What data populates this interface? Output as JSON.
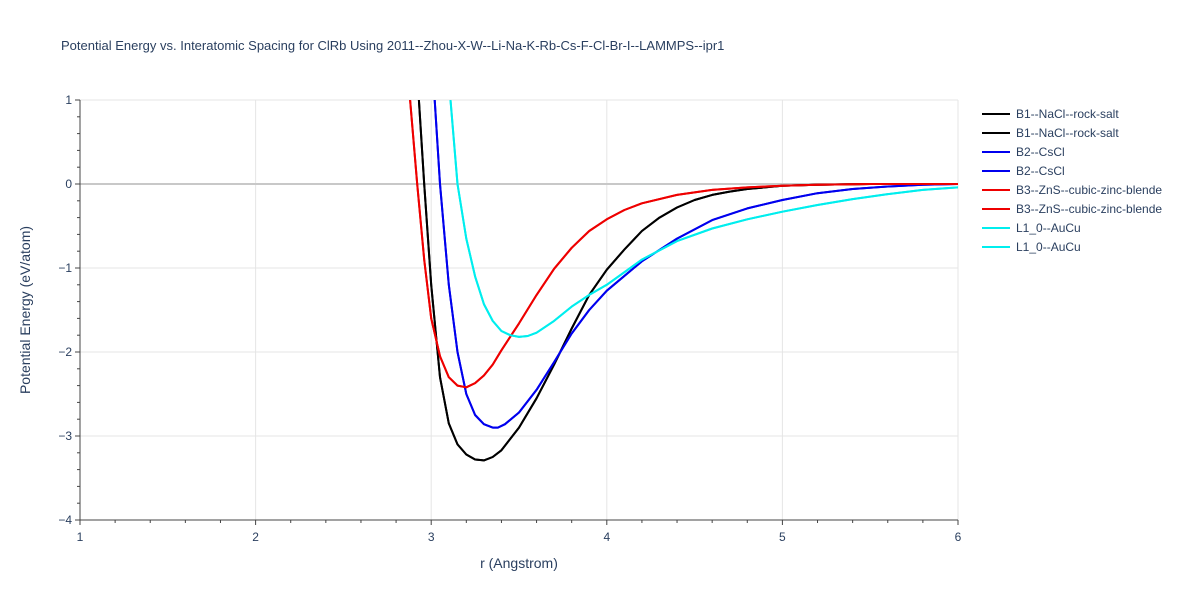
{
  "chart_data": {
    "type": "line",
    "title": "Potential Energy vs. Interatomic Spacing for ClRb Using 2011--Zhou-X-W--Li-Na-K-Rb-Cs-F-Cl-Br-I--LAMMPS--ipr1",
    "xlabel": "r (Angstrom)",
    "ylabel": "Potential Energy (eV/atom)",
    "xlim": [
      1,
      6
    ],
    "ylim": [
      -4,
      1
    ],
    "xticks": [
      1,
      2,
      3,
      4,
      5,
      6
    ],
    "xtick_labels": [
      "1",
      "2",
      "3",
      "4",
      "5",
      "6"
    ],
    "yticks": [
      -4,
      -3,
      -2,
      -1,
      0,
      1
    ],
    "ytick_labels": [
      "−4",
      "−3",
      "−2",
      "−1",
      "0",
      "1"
    ],
    "grid": true,
    "legend_position": "right",
    "series": [
      {
        "name": "B1--NaCl--rock-salt",
        "color": "#000000",
        "x": [
          2.93,
          2.96,
          3.0,
          3.05,
          3.1,
          3.15,
          3.2,
          3.25,
          3.3,
          3.35,
          3.4,
          3.5,
          3.6,
          3.7,
          3.8,
          3.9,
          4.0,
          4.1,
          4.2,
          4.3,
          4.4,
          4.5,
          4.6,
          4.7,
          4.8,
          4.9,
          5.0,
          5.2,
          5.5,
          6.0
        ],
        "y": [
          1.0,
          0.0,
          -1.2,
          -2.3,
          -2.85,
          -3.1,
          -3.22,
          -3.28,
          -3.29,
          -3.25,
          -3.17,
          -2.9,
          -2.55,
          -2.15,
          -1.72,
          -1.32,
          -1.02,
          -0.78,
          -0.56,
          -0.4,
          -0.28,
          -0.19,
          -0.13,
          -0.09,
          -0.06,
          -0.04,
          -0.02,
          -0.01,
          0.0,
          0.0
        ]
      },
      {
        "name": "B1--NaCl--rock-salt",
        "color": "#000000",
        "x": [
          2.93,
          2.96,
          3.0,
          3.05,
          3.1,
          3.15,
          3.2,
          3.25,
          3.3,
          3.35,
          3.4,
          3.5,
          3.6,
          3.7,
          3.8,
          3.9,
          4.0,
          4.1,
          4.2,
          4.3,
          4.4,
          4.5,
          4.6,
          4.7,
          4.8,
          4.9,
          5.0,
          5.2,
          5.5,
          6.0
        ],
        "y": [
          1.0,
          0.0,
          -1.2,
          -2.3,
          -2.85,
          -3.1,
          -3.22,
          -3.28,
          -3.29,
          -3.25,
          -3.17,
          -2.9,
          -2.55,
          -2.15,
          -1.72,
          -1.32,
          -1.02,
          -0.78,
          -0.56,
          -0.4,
          -0.28,
          -0.19,
          -0.13,
          -0.09,
          -0.06,
          -0.04,
          -0.02,
          -0.01,
          0.0,
          0.0
        ]
      },
      {
        "name": "B2--CsCl",
        "color": "#0000ee",
        "x": [
          3.02,
          3.05,
          3.1,
          3.15,
          3.2,
          3.25,
          3.3,
          3.35,
          3.38,
          3.42,
          3.5,
          3.6,
          3.7,
          3.8,
          3.9,
          4.0,
          4.2,
          4.4,
          4.6,
          4.8,
          5.0,
          5.2,
          5.4,
          5.6,
          5.8,
          6.0
        ],
        "y": [
          1.0,
          0.0,
          -1.2,
          -2.0,
          -2.5,
          -2.75,
          -2.86,
          -2.9,
          -2.9,
          -2.86,
          -2.72,
          -2.45,
          -2.12,
          -1.78,
          -1.5,
          -1.27,
          -0.92,
          -0.65,
          -0.43,
          -0.29,
          -0.19,
          -0.11,
          -0.06,
          -0.03,
          -0.01,
          0.0
        ]
      },
      {
        "name": "B2--CsCl",
        "color": "#0000ee",
        "x": [
          3.02,
          3.05,
          3.1,
          3.15,
          3.2,
          3.25,
          3.3,
          3.35,
          3.38,
          3.42,
          3.5,
          3.6,
          3.7,
          3.8,
          3.9,
          4.0,
          4.2,
          4.4,
          4.6,
          4.8,
          5.0,
          5.2,
          5.4,
          5.6,
          5.8,
          6.0
        ],
        "y": [
          1.0,
          0.0,
          -1.2,
          -2.0,
          -2.5,
          -2.75,
          -2.86,
          -2.9,
          -2.9,
          -2.86,
          -2.72,
          -2.45,
          -2.12,
          -1.78,
          -1.5,
          -1.27,
          -0.92,
          -0.65,
          -0.43,
          -0.29,
          -0.19,
          -0.11,
          -0.06,
          -0.03,
          -0.01,
          0.0
        ]
      },
      {
        "name": "B3--ZnS--cubic-zinc-blende",
        "color": "#ee0000",
        "x": [
          2.88,
          2.92,
          2.96,
          3.0,
          3.05,
          3.1,
          3.15,
          3.2,
          3.25,
          3.3,
          3.35,
          3.4,
          3.5,
          3.6,
          3.7,
          3.8,
          3.9,
          4.0,
          4.1,
          4.2,
          4.4,
          4.6,
          4.8,
          5.0,
          5.2,
          5.5,
          6.0
        ],
        "y": [
          1.0,
          0.0,
          -0.9,
          -1.6,
          -2.05,
          -2.3,
          -2.4,
          -2.42,
          -2.37,
          -2.28,
          -2.15,
          -1.98,
          -1.66,
          -1.32,
          -1.01,
          -0.76,
          -0.56,
          -0.42,
          -0.31,
          -0.23,
          -0.13,
          -0.07,
          -0.04,
          -0.02,
          -0.01,
          0.0,
          0.0
        ]
      },
      {
        "name": "B3--ZnS--cubic-zinc-blende",
        "color": "#ee0000",
        "x": [
          2.88,
          2.92,
          2.96,
          3.0,
          3.05,
          3.1,
          3.15,
          3.2,
          3.25,
          3.3,
          3.35,
          3.4,
          3.5,
          3.6,
          3.7,
          3.8,
          3.9,
          4.0,
          4.1,
          4.2,
          4.4,
          4.6,
          4.8,
          5.0,
          5.2,
          5.5,
          6.0
        ],
        "y": [
          1.0,
          0.0,
          -0.9,
          -1.6,
          -2.05,
          -2.3,
          -2.4,
          -2.42,
          -2.37,
          -2.28,
          -2.15,
          -1.98,
          -1.66,
          -1.32,
          -1.01,
          -0.76,
          -0.56,
          -0.42,
          -0.31,
          -0.23,
          -0.13,
          -0.07,
          -0.04,
          -0.02,
          -0.01,
          0.0,
          0.0
        ]
      },
      {
        "name": "L1_0--AuCu",
        "color": "#00eeee",
        "x": [
          3.11,
          3.15,
          3.2,
          3.25,
          3.3,
          3.35,
          3.4,
          3.45,
          3.5,
          3.55,
          3.6,
          3.7,
          3.8,
          3.9,
          4.0,
          4.2,
          4.4,
          4.6,
          4.8,
          5.0,
          5.2,
          5.4,
          5.6,
          5.8,
          6.0
        ],
        "y": [
          1.0,
          0.0,
          -0.65,
          -1.1,
          -1.43,
          -1.63,
          -1.75,
          -1.8,
          -1.82,
          -1.81,
          -1.77,
          -1.63,
          -1.46,
          -1.32,
          -1.2,
          -0.9,
          -0.68,
          -0.53,
          -0.42,
          -0.33,
          -0.25,
          -0.18,
          -0.12,
          -0.07,
          -0.04
        ]
      },
      {
        "name": "L1_0--AuCu",
        "color": "#00eeee",
        "x": [
          3.11,
          3.15,
          3.2,
          3.25,
          3.3,
          3.35,
          3.4,
          3.45,
          3.5,
          3.55,
          3.6,
          3.7,
          3.8,
          3.9,
          4.0,
          4.2,
          4.4,
          4.6,
          4.8,
          5.0,
          5.2,
          5.4,
          5.6,
          5.8,
          6.0
        ],
        "y": [
          1.0,
          0.0,
          -0.65,
          -1.1,
          -1.43,
          -1.63,
          -1.75,
          -1.8,
          -1.82,
          -1.81,
          -1.77,
          -1.63,
          -1.46,
          -1.32,
          -1.2,
          -0.9,
          -0.68,
          -0.53,
          -0.42,
          -0.33,
          -0.25,
          -0.18,
          -0.12,
          -0.07,
          -0.04
        ]
      }
    ]
  }
}
